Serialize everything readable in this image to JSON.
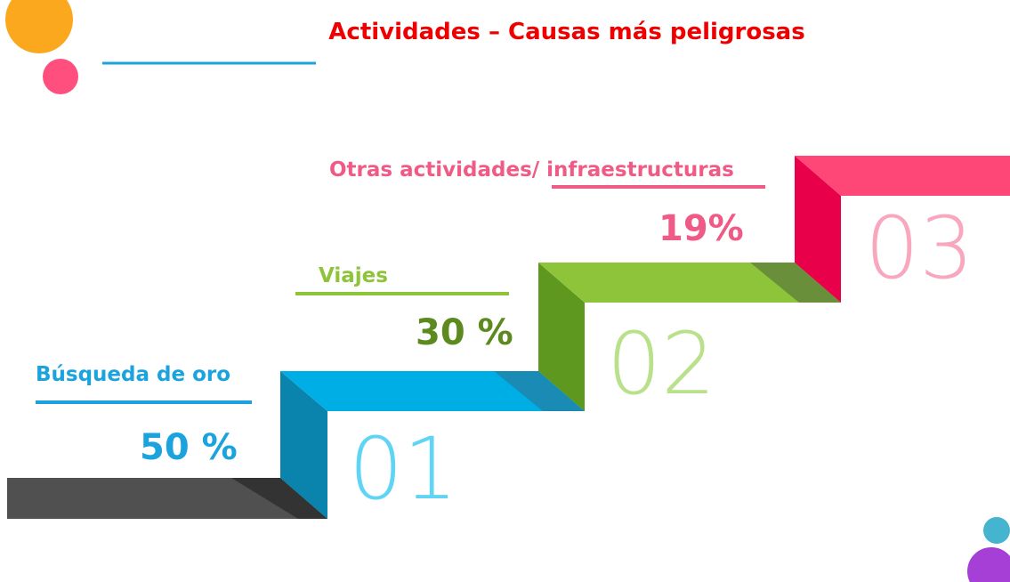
{
  "header": {
    "title": "Actividades – Causas más peligrosas"
  },
  "steps": [
    {
      "number": "01",
      "label": "Búsqueda de oro",
      "value": "50 %"
    },
    {
      "number": "02",
      "label": "Viajes",
      "value": "30 %"
    },
    {
      "number": "03",
      "label": "Otras actividades/ infraestructuras",
      "value": "19%"
    }
  ]
}
